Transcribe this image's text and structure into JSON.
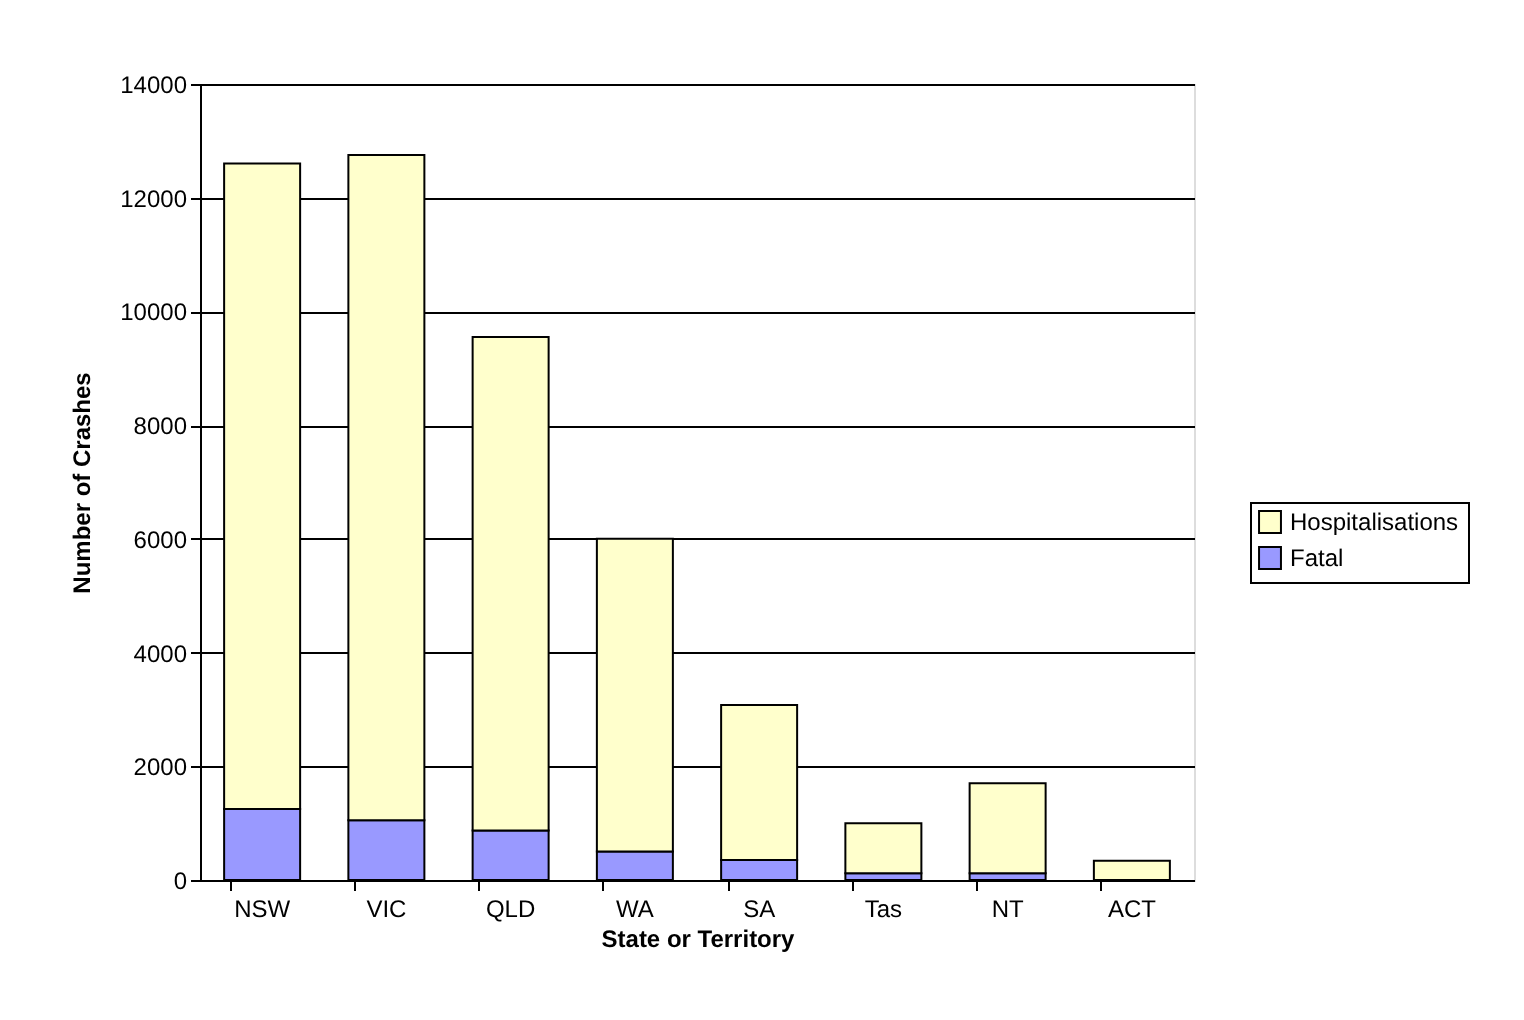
{
  "chart_data": {
    "type": "bar",
    "stacked": true,
    "xlabel": "State or Territory",
    "ylabel": "Number of Crashes",
    "categories": [
      "NSW",
      "VIC",
      "QLD",
      "WA",
      "SA",
      "Tas",
      "NT",
      "ACT"
    ],
    "series": [
      {
        "name": "Fatal",
        "color": "#9999ff",
        "values": [
          1250,
          1050,
          870,
          500,
          350,
          120,
          120,
          null
        ]
      },
      {
        "name": "Hospitalisations",
        "color": "#ffffcc",
        "values": [
          11350,
          11700,
          8680,
          5500,
          2730,
          880,
          1580,
          340
        ]
      }
    ],
    "ylim": [
      0,
      14000
    ],
    "yticks": [
      0,
      2000,
      4000,
      6000,
      8000,
      10000,
      12000,
      14000
    ],
    "grid": "y",
    "legend": "right"
  }
}
